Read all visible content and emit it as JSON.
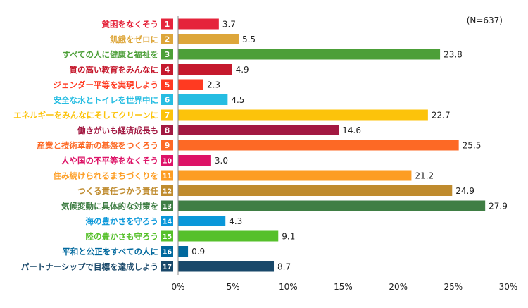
{
  "chart_data": {
    "type": "bar",
    "orientation": "horizontal",
    "annotation": "(N=637)",
    "xlim": [
      0,
      30
    ],
    "xticks": [
      0,
      5,
      10,
      15,
      20,
      25,
      30
    ],
    "xtick_labels": [
      "0%",
      "5%",
      "10%",
      "15%",
      "20%",
      "25%",
      "30%"
    ],
    "grid": false,
    "categories": [
      {
        "num": "1",
        "label": "貧困をなくそう",
        "value": 3.7,
        "color": "#E5243B"
      },
      {
        "num": "2",
        "label": "飢餓をゼロに",
        "value": 5.5,
        "color": "#DDA63A"
      },
      {
        "num": "3",
        "label": "すべての人に健康と福祉を",
        "value": 23.8,
        "color": "#4C9F38"
      },
      {
        "num": "4",
        "label": "質の高い教育をみんなに",
        "value": 4.9,
        "color": "#C5192D"
      },
      {
        "num": "5",
        "label": "ジェンダー平等を実現しよう",
        "value": 2.3,
        "color": "#FF3A21"
      },
      {
        "num": "6",
        "label": "安全な水とトイレを世界中に",
        "value": 4.5,
        "color": "#26BDE2"
      },
      {
        "num": "7",
        "label": "エネルギーをみんなにそしてクリーンに",
        "value": 22.7,
        "color": "#FCC30B"
      },
      {
        "num": "8",
        "label": "働きがいも経済成長も",
        "value": 14.6,
        "color": "#A21942"
      },
      {
        "num": "9",
        "label": "産業と技術革新の基盤をつくろう",
        "value": 25.5,
        "color": "#FD6925"
      },
      {
        "num": "10",
        "label": "人や国の不平等をなくそう",
        "value": 3.0,
        "color": "#DD1367"
      },
      {
        "num": "11",
        "label": "住み続けられるまちづくりを",
        "value": 21.2,
        "color": "#FD9D24"
      },
      {
        "num": "12",
        "label": "つくる責任つかう責任",
        "value": 24.9,
        "color": "#BF8B2E"
      },
      {
        "num": "13",
        "label": "気候変動に具体的な対策を",
        "value": 27.9,
        "color": "#3F7E44"
      },
      {
        "num": "14",
        "label": "海の豊かさを守ろう",
        "value": 4.3,
        "color": "#0A97D9"
      },
      {
        "num": "15",
        "label": "陸の豊かさも守ろう",
        "value": 9.1,
        "color": "#56C02B"
      },
      {
        "num": "16",
        "label": "平和と公正をすべての人に",
        "value": 0.9,
        "color": "#00689D"
      },
      {
        "num": "17",
        "label": "パートナーシップで目標を達成しよう",
        "value": 8.7,
        "color": "#19486A"
      }
    ]
  }
}
